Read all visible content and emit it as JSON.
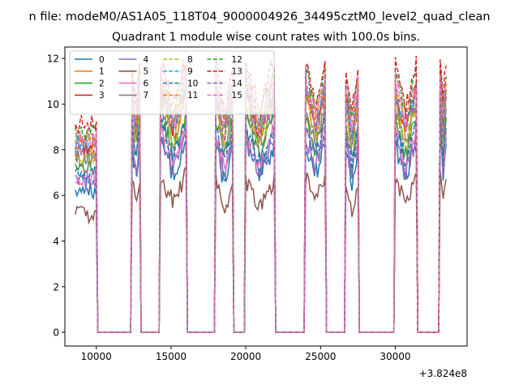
{
  "figure": {
    "suptitle": "n file: modeM0/AS1A05_118T04_9000004926_34495cztM0_level2_quad_clean",
    "offset_label": "+3.824e8"
  },
  "chart_data": {
    "type": "line",
    "title": "Quadrant 1 module wise count rates with 100.0s bins.",
    "xlabel": "",
    "ylabel": "",
    "xlim": [
      7900,
      34800
    ],
    "ylim": [
      -0.6,
      12.5
    ],
    "xticks": [
      10000,
      15000,
      20000,
      25000,
      30000
    ],
    "xtick_labels": [
      "10000",
      "15000",
      "20000",
      "25000",
      "30000"
    ],
    "yticks": [
      0,
      2,
      4,
      6,
      8,
      10,
      12
    ],
    "ytick_labels": [
      "0",
      "2",
      "4",
      "6",
      "8",
      "10",
      "12"
    ],
    "legend_position": "top-left",
    "legend_columns": 4,
    "active_intervals": [
      [
        8600,
        10000
      ],
      [
        12400,
        12900
      ],
      [
        14300,
        16000
      ],
      [
        18000,
        19100
      ],
      [
        20000,
        21900
      ],
      [
        24000,
        25300
      ],
      [
        26700,
        27500
      ],
      [
        30000,
        31400
      ],
      [
        33000,
        33400
      ]
    ],
    "off_level": 0,
    "series": [
      {
        "name": "0",
        "color": "#1f77b4",
        "dashed": false,
        "base": 6.6
      },
      {
        "name": "1",
        "color": "#ff7f0e",
        "dashed": false,
        "base": 8.3
      },
      {
        "name": "2",
        "color": "#2ca02c",
        "dashed": false,
        "base": 7.6
      },
      {
        "name": "3",
        "color": "#d62728",
        "dashed": false,
        "base": 8.6
      },
      {
        "name": "4",
        "color": "#9467bd",
        "dashed": false,
        "base": 6.9
      },
      {
        "name": "5",
        "color": "#8c564b",
        "dashed": false,
        "base": 5.4
      },
      {
        "name": "6",
        "color": "#e377c2",
        "dashed": false,
        "base": 7.2
      },
      {
        "name": "7",
        "color": "#7f7f7f",
        "dashed": false,
        "base": 8.0
      },
      {
        "name": "8",
        "color": "#bcbd22",
        "dashed": true,
        "base": 8.1
      },
      {
        "name": "9",
        "color": "#17becf",
        "dashed": true,
        "base": 8.7
      },
      {
        "name": "10",
        "color": "#1f77b4",
        "dashed": true,
        "base": 7.3
      },
      {
        "name": "11",
        "color": "#ff7f0e",
        "dashed": true,
        "base": 8.9
      },
      {
        "name": "12",
        "color": "#2ca02c",
        "dashed": true,
        "base": 9.2
      },
      {
        "name": "13",
        "color": "#d62728",
        "dashed": true,
        "base": 9.6
      },
      {
        "name": "14",
        "color": "#9467bd",
        "dashed": true,
        "base": 8.5
      },
      {
        "name": "15",
        "color": "#e377c2",
        "dashed": true,
        "base": 9.0
      }
    ]
  }
}
